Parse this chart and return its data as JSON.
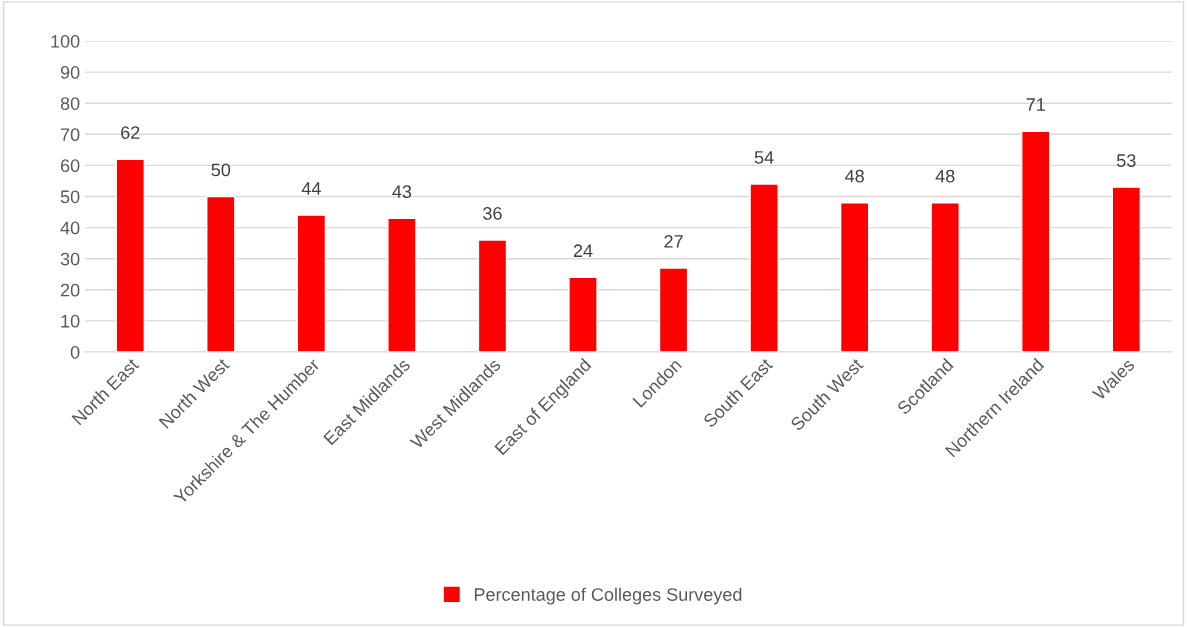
{
  "chart_data": {
    "type": "bar",
    "categories": [
      "North East",
      "North West",
      "Yorkshire & The Humber",
      "East Midlands",
      "West Midlands",
      "East of England",
      "London",
      "South East",
      "South West",
      "Scotland",
      "Northern Ireland",
      "Wales"
    ],
    "series": [
      {
        "name": "Percentage of Colleges Surveyed",
        "color": "#ff0000",
        "values": [
          62,
          50,
          44,
          43,
          36,
          24,
          27,
          54,
          48,
          48,
          71,
          53
        ]
      }
    ],
    "ylim": [
      0,
      100
    ],
    "yticks": [
      0,
      10,
      20,
      30,
      40,
      50,
      60,
      70,
      80,
      90,
      100
    ],
    "grid": "y",
    "legend": "bottom",
    "data_labels": true
  }
}
